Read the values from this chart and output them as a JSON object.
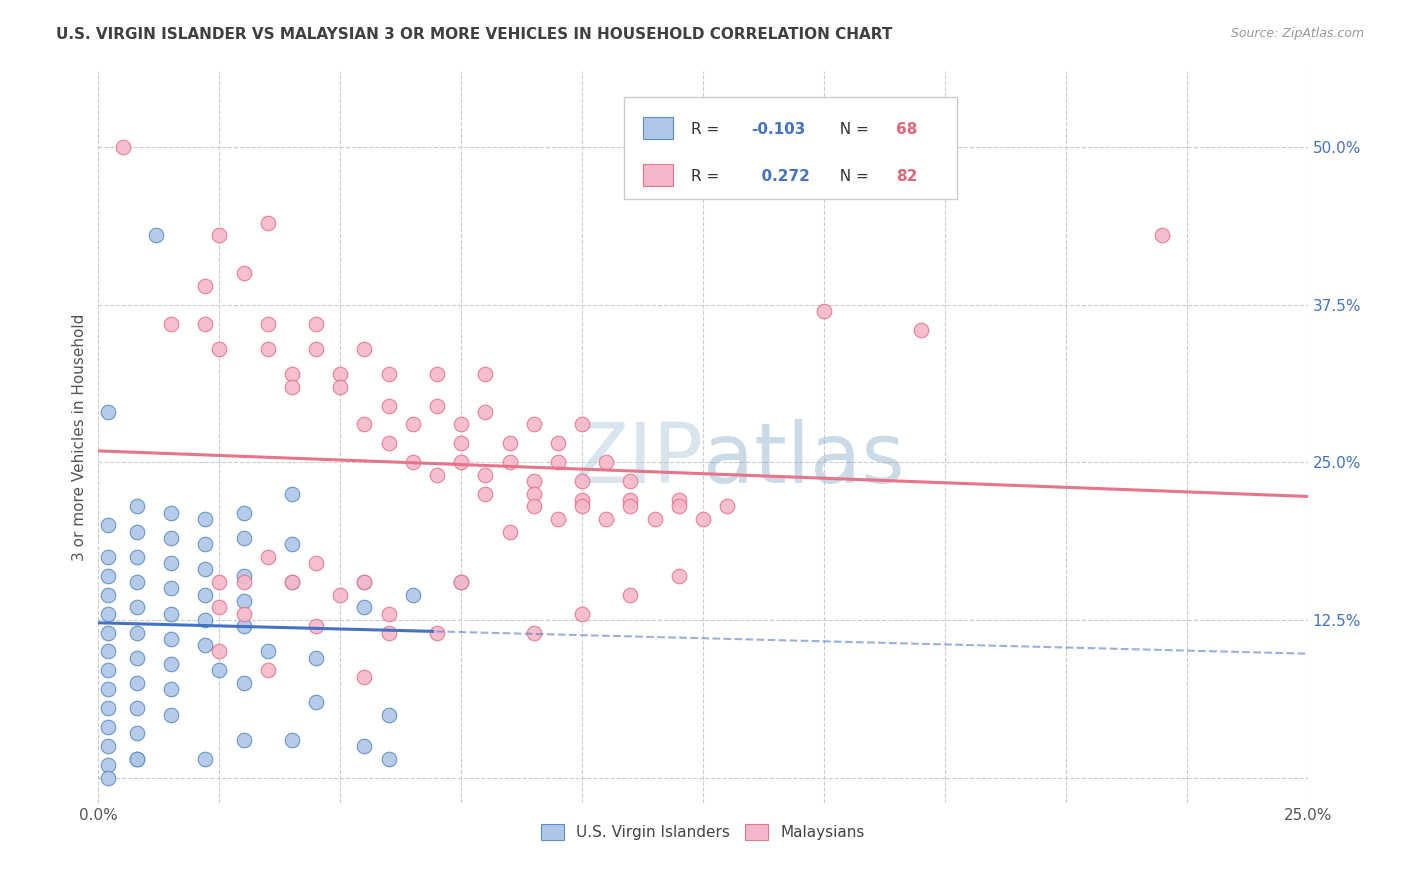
{
  "title": "U.S. VIRGIN ISLANDER VS MALAYSIAN 3 OR MORE VEHICLES IN HOUSEHOLD CORRELATION CHART",
  "source": "Source: ZipAtlas.com",
  "ylabel": "3 or more Vehicles in Household",
  "xlim": [
    0.0,
    0.25
  ],
  "ylim": [
    -0.02,
    0.56
  ],
  "ytick_vals": [
    0.0,
    0.125,
    0.25,
    0.375,
    0.5
  ],
  "ytick_labels": [
    "",
    "12.5%",
    "25.0%",
    "37.5%",
    "50.0%"
  ],
  "xtick_vals": [
    0.0,
    0.25
  ],
  "xtick_labels": [
    "0.0%",
    "25.0%"
  ],
  "legend_label_blue": "U.S. Virgin Islanders",
  "legend_label_pink": "Malaysians",
  "blue_fill": "#aec6e8",
  "pink_fill": "#f5b8cb",
  "blue_edge": "#5b8ec4",
  "pink_edge": "#e8748a",
  "blue_line": "#4472c4",
  "pink_line": "#e8748a",
  "title_color": "#404040",
  "axis_label_color": "#555555",
  "right_tick_color": "#4472c4",
  "grid_color": "#cccccc",
  "watermark_color": "#cfdded",
  "blue_scatter": [
    [
      0.002,
      0.2
    ],
    [
      0.002,
      0.175
    ],
    [
      0.002,
      0.16
    ],
    [
      0.002,
      0.145
    ],
    [
      0.002,
      0.13
    ],
    [
      0.002,
      0.115
    ],
    [
      0.002,
      0.1
    ],
    [
      0.002,
      0.085
    ],
    [
      0.002,
      0.07
    ],
    [
      0.002,
      0.055
    ],
    [
      0.002,
      0.04
    ],
    [
      0.002,
      0.025
    ],
    [
      0.002,
      0.01
    ],
    [
      0.002,
      0.0
    ],
    [
      0.008,
      0.215
    ],
    [
      0.008,
      0.195
    ],
    [
      0.008,
      0.175
    ],
    [
      0.008,
      0.155
    ],
    [
      0.008,
      0.135
    ],
    [
      0.008,
      0.115
    ],
    [
      0.008,
      0.095
    ],
    [
      0.008,
      0.075
    ],
    [
      0.008,
      0.055
    ],
    [
      0.008,
      0.035
    ],
    [
      0.008,
      0.015
    ],
    [
      0.015,
      0.21
    ],
    [
      0.015,
      0.19
    ],
    [
      0.015,
      0.17
    ],
    [
      0.015,
      0.15
    ],
    [
      0.015,
      0.13
    ],
    [
      0.015,
      0.11
    ],
    [
      0.015,
      0.09
    ],
    [
      0.015,
      0.07
    ],
    [
      0.015,
      0.05
    ],
    [
      0.022,
      0.205
    ],
    [
      0.022,
      0.185
    ],
    [
      0.022,
      0.165
    ],
    [
      0.022,
      0.145
    ],
    [
      0.022,
      0.125
    ],
    [
      0.022,
      0.105
    ],
    [
      0.03,
      0.21
    ],
    [
      0.03,
      0.19
    ],
    [
      0.03,
      0.16
    ],
    [
      0.03,
      0.14
    ],
    [
      0.03,
      0.12
    ],
    [
      0.04,
      0.225
    ],
    [
      0.04,
      0.185
    ],
    [
      0.04,
      0.155
    ],
    [
      0.055,
      0.155
    ],
    [
      0.055,
      0.135
    ],
    [
      0.065,
      0.145
    ],
    [
      0.075,
      0.155
    ],
    [
      0.012,
      0.43
    ],
    [
      0.025,
      0.085
    ],
    [
      0.035,
      0.1
    ],
    [
      0.045,
      0.095
    ],
    [
      0.008,
      0.015
    ],
    [
      0.022,
      0.015
    ],
    [
      0.03,
      0.075
    ],
    [
      0.045,
      0.06
    ],
    [
      0.06,
      0.05
    ],
    [
      0.03,
      0.03
    ],
    [
      0.04,
      0.03
    ],
    [
      0.055,
      0.025
    ],
    [
      0.002,
      0.29
    ],
    [
      0.06,
      0.015
    ]
  ],
  "pink_scatter": [
    [
      0.005,
      0.5
    ],
    [
      0.025,
      0.43
    ],
    [
      0.022,
      0.39
    ],
    [
      0.035,
      0.44
    ],
    [
      0.03,
      0.4
    ],
    [
      0.015,
      0.36
    ],
    [
      0.022,
      0.36
    ],
    [
      0.035,
      0.36
    ],
    [
      0.045,
      0.36
    ],
    [
      0.025,
      0.34
    ],
    [
      0.035,
      0.34
    ],
    [
      0.045,
      0.34
    ],
    [
      0.055,
      0.34
    ],
    [
      0.04,
      0.32
    ],
    [
      0.05,
      0.32
    ],
    [
      0.06,
      0.32
    ],
    [
      0.07,
      0.32
    ],
    [
      0.08,
      0.32
    ],
    [
      0.04,
      0.31
    ],
    [
      0.05,
      0.31
    ],
    [
      0.06,
      0.295
    ],
    [
      0.07,
      0.295
    ],
    [
      0.08,
      0.29
    ],
    [
      0.055,
      0.28
    ],
    [
      0.065,
      0.28
    ],
    [
      0.075,
      0.28
    ],
    [
      0.09,
      0.28
    ],
    [
      0.1,
      0.28
    ],
    [
      0.06,
      0.265
    ],
    [
      0.075,
      0.265
    ],
    [
      0.085,
      0.265
    ],
    [
      0.095,
      0.265
    ],
    [
      0.065,
      0.25
    ],
    [
      0.075,
      0.25
    ],
    [
      0.085,
      0.25
    ],
    [
      0.095,
      0.25
    ],
    [
      0.105,
      0.25
    ],
    [
      0.07,
      0.24
    ],
    [
      0.08,
      0.24
    ],
    [
      0.09,
      0.235
    ],
    [
      0.1,
      0.235
    ],
    [
      0.11,
      0.235
    ],
    [
      0.08,
      0.225
    ],
    [
      0.09,
      0.225
    ],
    [
      0.1,
      0.22
    ],
    [
      0.11,
      0.22
    ],
    [
      0.12,
      0.22
    ],
    [
      0.09,
      0.215
    ],
    [
      0.1,
      0.215
    ],
    [
      0.11,
      0.215
    ],
    [
      0.12,
      0.215
    ],
    [
      0.13,
      0.215
    ],
    [
      0.105,
      0.205
    ],
    [
      0.115,
      0.205
    ],
    [
      0.125,
      0.205
    ],
    [
      0.15,
      0.37
    ],
    [
      0.17,
      0.355
    ],
    [
      0.22,
      0.43
    ],
    [
      0.055,
      0.155
    ],
    [
      0.075,
      0.155
    ],
    [
      0.085,
      0.195
    ],
    [
      0.095,
      0.205
    ],
    [
      0.11,
      0.145
    ],
    [
      0.12,
      0.16
    ],
    [
      0.07,
      0.115
    ],
    [
      0.09,
      0.115
    ],
    [
      0.1,
      0.13
    ],
    [
      0.045,
      0.17
    ],
    [
      0.035,
      0.175
    ],
    [
      0.03,
      0.155
    ],
    [
      0.025,
      0.155
    ],
    [
      0.04,
      0.155
    ],
    [
      0.05,
      0.145
    ],
    [
      0.06,
      0.13
    ],
    [
      0.025,
      0.135
    ],
    [
      0.03,
      0.13
    ],
    [
      0.045,
      0.12
    ],
    [
      0.06,
      0.115
    ],
    [
      0.025,
      0.1
    ],
    [
      0.035,
      0.085
    ],
    [
      0.055,
      0.08
    ]
  ]
}
